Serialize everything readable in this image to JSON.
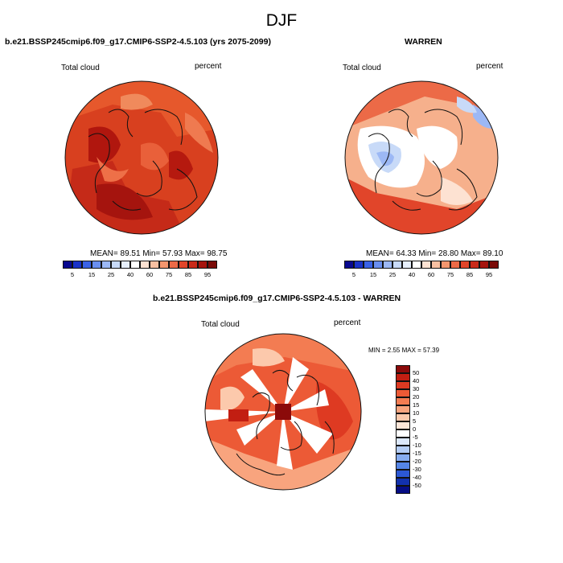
{
  "title": "DJF",
  "panels": {
    "top_left": {
      "title": "b.e21.BSSP245cmip6.f09_g17.CMIP6-SSP2-4.5.103 (yrs 2075-2099)",
      "variable": "Total cloud",
      "units": "percent",
      "stats": "MEAN=  89.51  Min=  57.93  Max=  98.75"
    },
    "top_right": {
      "title": "WARREN",
      "variable": "Total cloud",
      "units": "percent",
      "stats": "MEAN=  64.33  Min=  28.80  Max=  89.10"
    },
    "bottom": {
      "title": "b.e21.BSSP245cmip6.f09_g17.CMIP6-SSP2-4.5.103 - WARREN",
      "variable": "Total cloud",
      "units": "percent",
      "stats": "MIN =   2.55 MAX =  57.39"
    }
  },
  "chart_data": [
    {
      "type": "heatmap",
      "projection": "polar-stereographic-north",
      "title": "b.e21.BSSP245cmip6.f09_g17.CMIP6-SSP2-4.5.103 (yrs 2075-2099)",
      "variable": "Total cloud",
      "units": "percent",
      "mean": 89.51,
      "min": 57.93,
      "max": 98.75,
      "colorbar": {
        "orientation": "horizontal",
        "tick_labels": [
          "5",
          "15",
          "25",
          "40",
          "60",
          "75",
          "85",
          "95"
        ],
        "colors": [
          "#08088f",
          "#1a32c8",
          "#3a62e6",
          "#6a8ff0",
          "#9cb8f5",
          "#c8daf8",
          "#e6effc",
          "#ffffff",
          "#fde2d2",
          "#f8c0a2",
          "#f3966e",
          "#ec6a47",
          "#e1452a",
          "#c92a1a",
          "#a5140e",
          "#7a0b08"
        ]
      }
    },
    {
      "type": "heatmap",
      "projection": "polar-stereographic-north",
      "title": "WARREN",
      "variable": "Total cloud",
      "units": "percent",
      "mean": 64.33,
      "min": 28.8,
      "max": 89.1,
      "colorbar": {
        "orientation": "horizontal",
        "tick_labels": [
          "5",
          "15",
          "25",
          "40",
          "60",
          "75",
          "85",
          "95"
        ],
        "colors": [
          "#08088f",
          "#1a32c8",
          "#3a62e6",
          "#6a8ff0",
          "#9cb8f5",
          "#c8daf8",
          "#e6effc",
          "#ffffff",
          "#fde2d2",
          "#f8c0a2",
          "#f3966e",
          "#ec6a47",
          "#e1452a",
          "#c92a1a",
          "#a5140e",
          "#7a0b08"
        ]
      }
    },
    {
      "type": "heatmap",
      "projection": "polar-stereographic-north",
      "title": "b.e21.BSSP245cmip6.f09_g17.CMIP6-SSP2-4.5.103 - WARREN",
      "variable": "Total cloud",
      "units": "percent",
      "min": 2.55,
      "max": 57.39,
      "colorbar": {
        "orientation": "vertical",
        "tick_labels": [
          "50",
          "40",
          "30",
          "20",
          "15",
          "10",
          "5",
          "0",
          "-5",
          "-10",
          "-15",
          "-20",
          "-30",
          "-40",
          "-50"
        ],
        "colors": [
          "#8b0a0a",
          "#c21e12",
          "#de3a22",
          "#ec5a36",
          "#f37c52",
          "#f8a47e",
          "#fcc9ac",
          "#fde6d8",
          "#ffffff",
          "#dce8fb",
          "#b4cdf6",
          "#86acf0",
          "#5585e6",
          "#2c58d4",
          "#1231ad",
          "#060d84"
        ]
      }
    }
  ]
}
